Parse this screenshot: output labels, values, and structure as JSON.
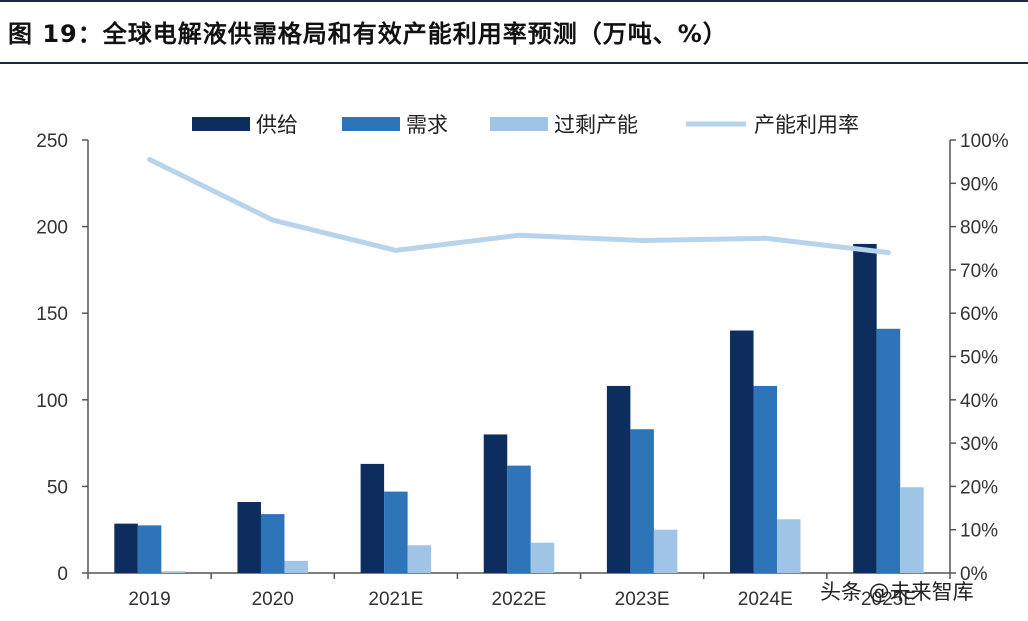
{
  "title": "图 19：全球电解液供需格局和有效产能利用率预测（万吨、%）",
  "watermark": "头条 @未来智库",
  "chart_data": {
    "type": "bar",
    "categories": [
      "2019",
      "2020",
      "2021E",
      "2022E",
      "2023E",
      "2024E",
      "2025E"
    ],
    "series": [
      {
        "name": "供给",
        "type": "bar",
        "axis": "left",
        "color": "#0d2d5e",
        "values": [
          28.5,
          41,
          63,
          80,
          108,
          140,
          190
        ]
      },
      {
        "name": "需求",
        "type": "bar",
        "axis": "left",
        "color": "#2e74b8",
        "values": [
          27.5,
          34,
          47,
          62,
          83,
          108,
          141
        ]
      },
      {
        "name": "过剩产能",
        "type": "bar",
        "axis": "left",
        "color": "#9fc4e6",
        "values": [
          1,
          7,
          16,
          17.5,
          25,
          31,
          49.5
        ]
      },
      {
        "name": "产能利用率",
        "type": "line",
        "axis": "right",
        "color": "#b8d4ec",
        "values": [
          95.5,
          81.5,
          74.5,
          78,
          76.8,
          77.3,
          74
        ]
      }
    ],
    "y_left": {
      "min": 0,
      "max": 250,
      "ticks": [
        "0",
        "50",
        "100",
        "150",
        "200",
        "250"
      ]
    },
    "y_right": {
      "min": 0,
      "max": 100,
      "ticks": [
        "0%",
        "10%",
        "20%",
        "30%",
        "40%",
        "50%",
        "60%",
        "70%",
        "80%",
        "90%",
        "100%"
      ]
    },
    "legend_position": "top",
    "grid": false
  }
}
